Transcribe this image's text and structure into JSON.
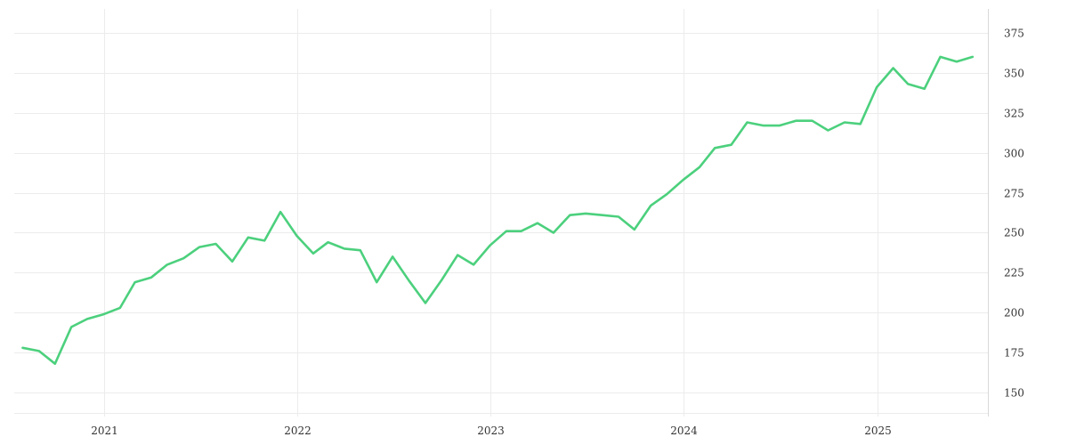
{
  "chart_data": {
    "type": "line",
    "title": "",
    "xlabel": "",
    "ylabel": "",
    "x_axis": {
      "min": "2020-07-15",
      "max": "2025-07-29",
      "ticks": [
        "2021-01-01",
        "2022-01-01",
        "2023-01-01",
        "2024-01-01",
        "2025-01-01"
      ],
      "tick_labels": [
        "2021",
        "2022",
        "2023",
        "2024",
        "2025"
      ]
    },
    "y_axis": {
      "min": 135,
      "max": 390,
      "position": "right",
      "ticks": [
        150,
        175,
        200,
        225,
        250,
        275,
        300,
        325,
        350,
        375
      ]
    },
    "grid": true,
    "colors": {
      "line": "#4cd07d"
    },
    "series": [
      {
        "x": [
          "2020-07-31",
          "2020-08-31",
          "2020-09-30",
          "2020-10-31",
          "2020-11-30",
          "2020-12-31",
          "2021-01-31",
          "2021-02-28",
          "2021-03-31",
          "2021-04-30",
          "2021-05-31",
          "2021-06-30",
          "2021-07-31",
          "2021-08-31",
          "2021-09-30",
          "2021-10-31",
          "2021-11-30",
          "2021-12-31",
          "2022-01-31",
          "2022-02-28",
          "2022-03-31",
          "2022-04-30",
          "2022-05-31",
          "2022-06-30",
          "2022-07-31",
          "2022-08-31",
          "2022-09-30",
          "2022-10-31",
          "2022-11-30",
          "2022-12-31",
          "2023-01-31",
          "2023-02-28",
          "2023-03-31",
          "2023-04-30",
          "2023-05-31",
          "2023-06-30",
          "2023-07-31",
          "2023-08-31",
          "2023-09-30",
          "2023-10-31",
          "2023-11-30",
          "2023-12-31",
          "2024-01-31",
          "2024-02-29",
          "2024-03-31",
          "2024-04-30",
          "2024-05-31",
          "2024-06-30",
          "2024-07-31",
          "2024-08-31",
          "2024-09-30",
          "2024-10-31",
          "2024-11-30",
          "2024-12-31",
          "2025-01-31",
          "2025-02-28",
          "2025-03-31",
          "2025-04-30",
          "2025-05-31",
          "2025-06-30"
        ],
        "y": [
          178,
          176,
          168,
          191,
          196,
          199,
          203,
          219,
          222,
          230,
          234,
          241,
          243,
          232,
          247,
          245,
          263,
          248,
          237,
          244,
          240,
          239,
          219,
          235,
          220,
          206,
          220,
          236,
          230,
          242,
          251,
          251,
          256,
          250,
          261,
          262,
          261,
          260,
          252,
          267,
          274,
          283,
          291,
          303,
          305,
          319,
          317,
          317,
          320,
          320,
          314,
          319,
          318,
          341,
          353,
          343,
          340,
          360,
          357,
          360
        ]
      }
    ]
  }
}
